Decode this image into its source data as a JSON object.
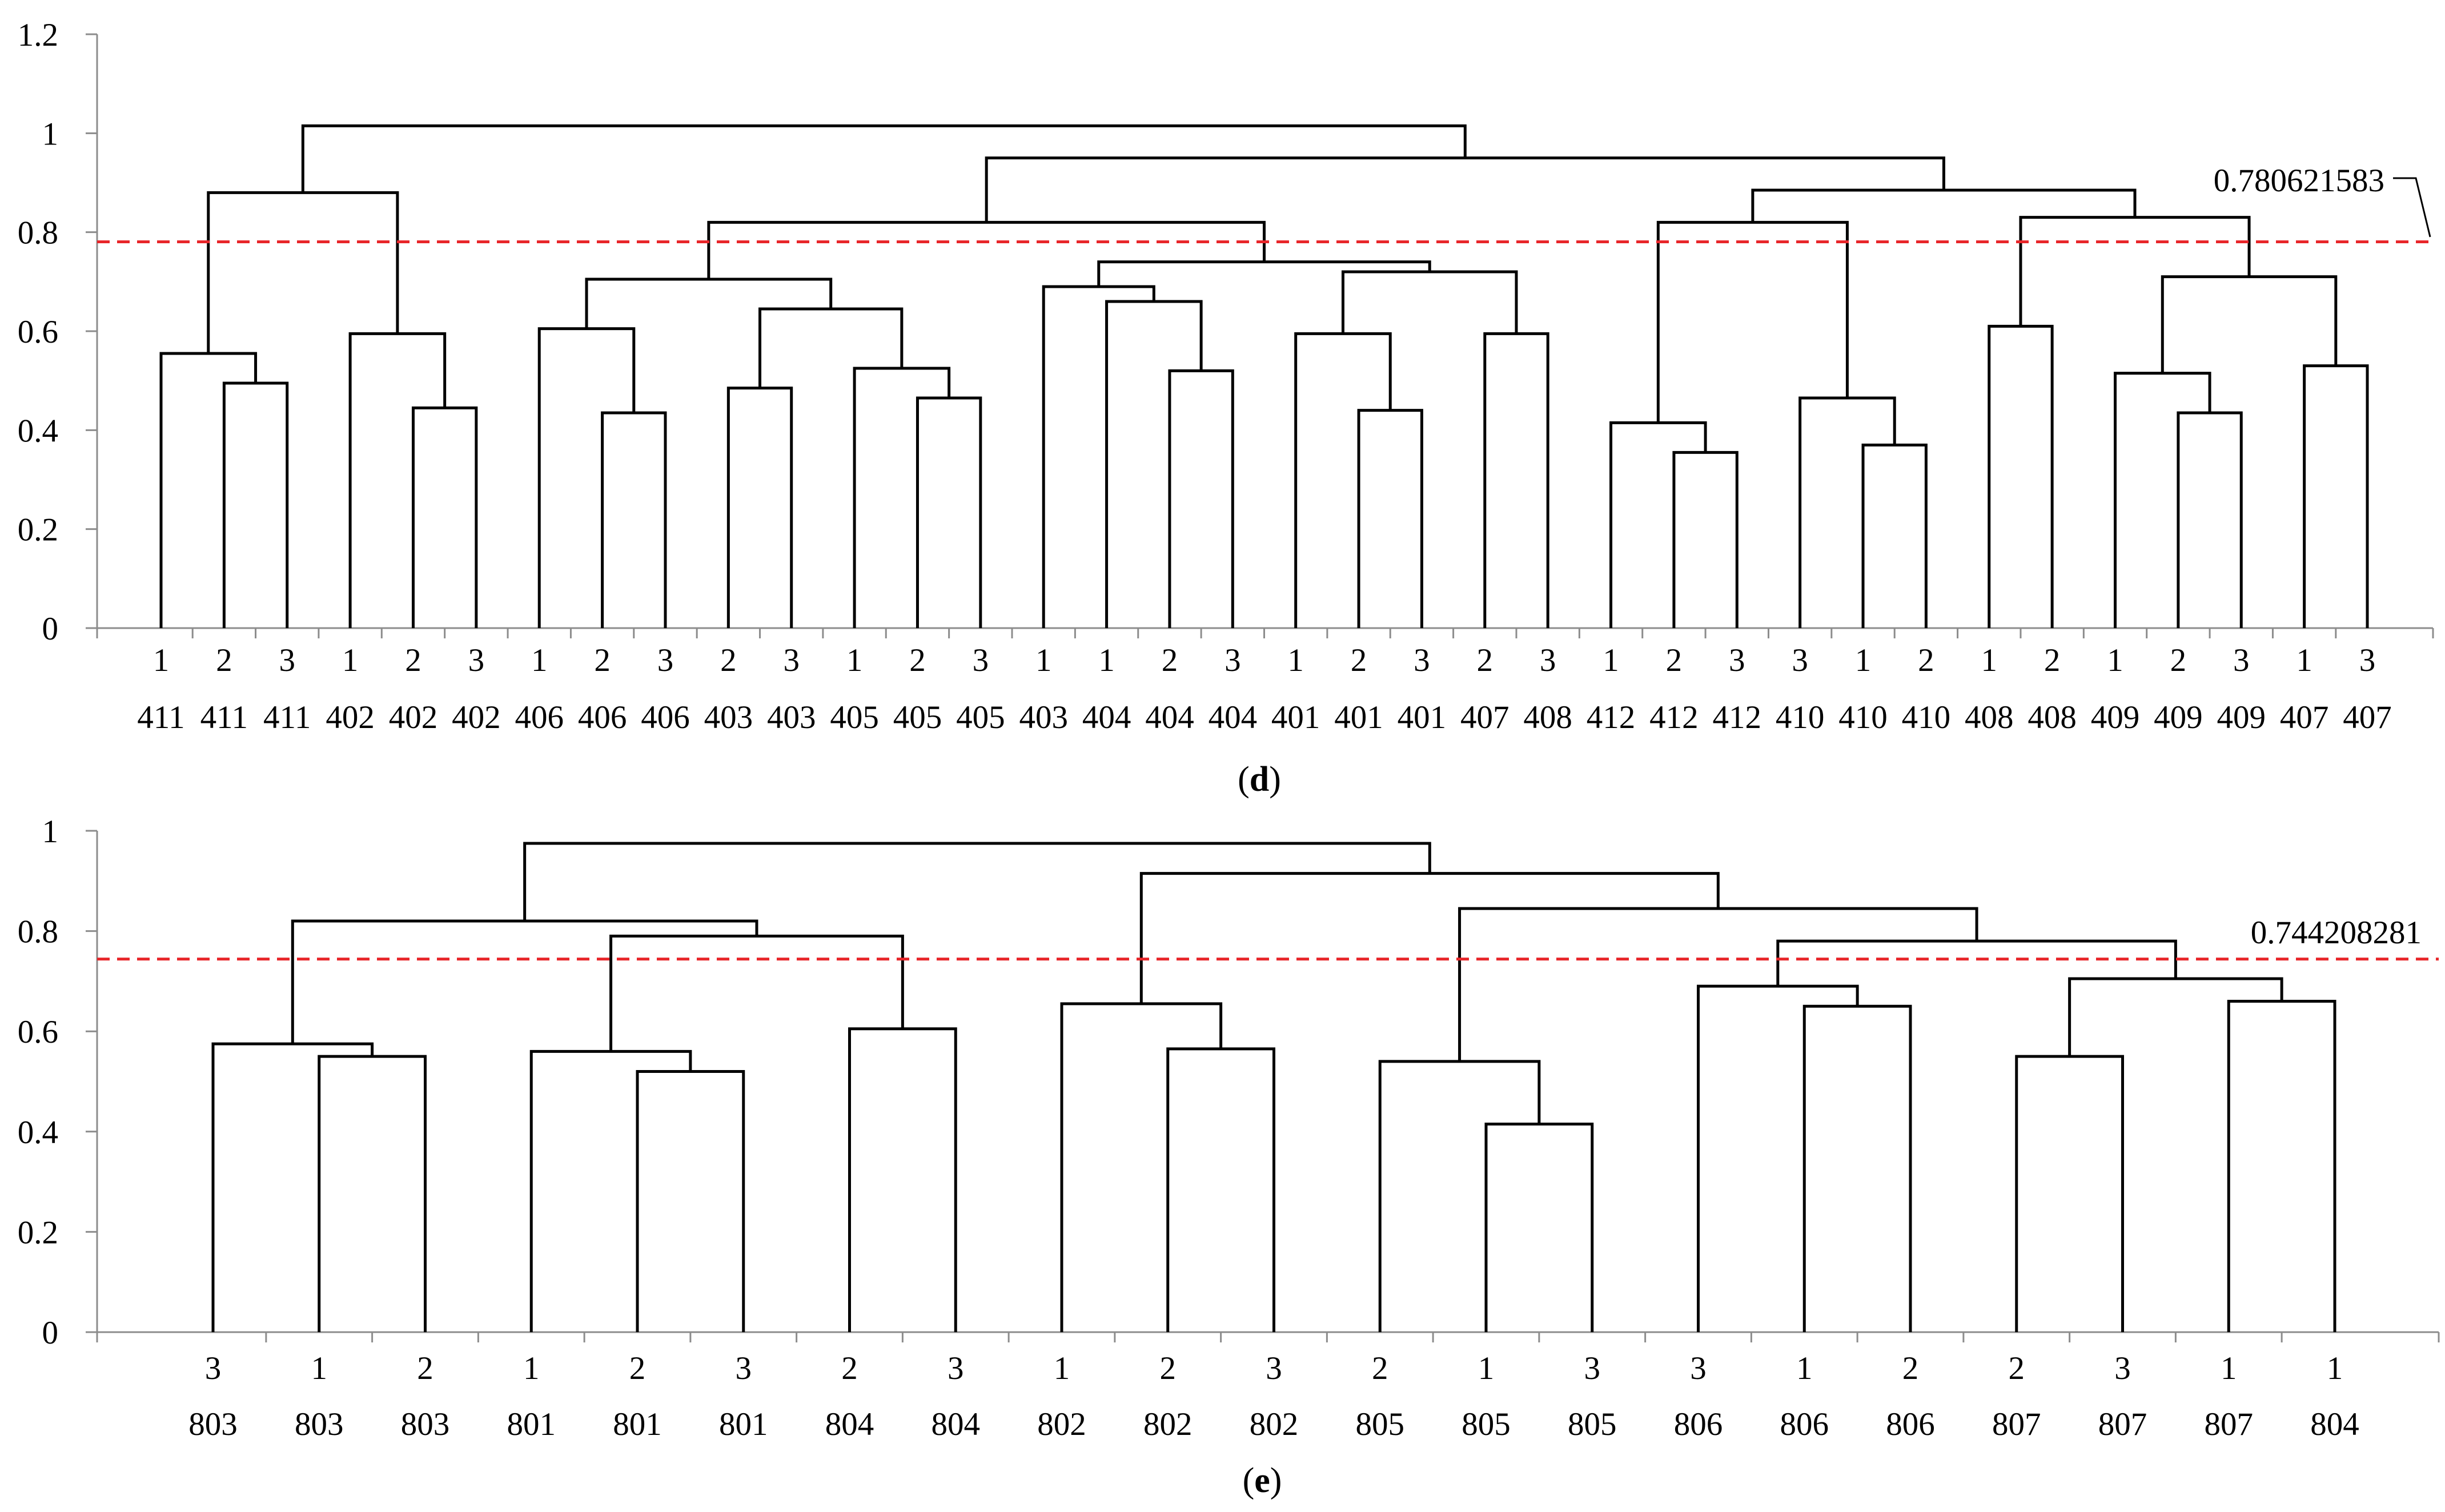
{
  "chart_data": [
    {
      "type": "dendrogram",
      "caption_letter": "d",
      "ylim": [
        0,
        1.2
      ],
      "yticks": [
        "0",
        "0.2",
        "0.4",
        "0.6",
        "0.8",
        "1",
        "1.2"
      ],
      "ytick_values": [
        0,
        0.2,
        0.4,
        0.6,
        0.8,
        1.0,
        1.2
      ],
      "threshold": 0.780621583,
      "threshold_label": "0.780621583",
      "leaves": [
        {
          "top": "1",
          "bottom": "411"
        },
        {
          "top": "2",
          "bottom": "411"
        },
        {
          "top": "3",
          "bottom": "411"
        },
        {
          "top": "1",
          "bottom": "402"
        },
        {
          "top": "2",
          "bottom": "402"
        },
        {
          "top": "3",
          "bottom": "402"
        },
        {
          "top": "1",
          "bottom": "406"
        },
        {
          "top": "2",
          "bottom": "406"
        },
        {
          "top": "3",
          "bottom": "406"
        },
        {
          "top": "2",
          "bottom": "403"
        },
        {
          "top": "3",
          "bottom": "403"
        },
        {
          "top": "1",
          "bottom": "405"
        },
        {
          "top": "2",
          "bottom": "405"
        },
        {
          "top": "3",
          "bottom": "405"
        },
        {
          "top": "1",
          "bottom": "403"
        },
        {
          "top": "1",
          "bottom": "404"
        },
        {
          "top": "2",
          "bottom": "404"
        },
        {
          "top": "3",
          "bottom": "404"
        },
        {
          "top": "1",
          "bottom": "401"
        },
        {
          "top": "2",
          "bottom": "401"
        },
        {
          "top": "3",
          "bottom": "401"
        },
        {
          "top": "2",
          "bottom": "407"
        },
        {
          "top": "3",
          "bottom": "408"
        },
        {
          "top": "1",
          "bottom": "412"
        },
        {
          "top": "2",
          "bottom": "412"
        },
        {
          "top": "3",
          "bottom": "412"
        },
        {
          "top": "3",
          "bottom": "410"
        },
        {
          "top": "1",
          "bottom": "410"
        },
        {
          "top": "2",
          "bottom": "410"
        },
        {
          "top": "1",
          "bottom": "408"
        },
        {
          "top": "2",
          "bottom": "408"
        },
        {
          "top": "1",
          "bottom": "409"
        },
        {
          "top": "2",
          "bottom": "409"
        },
        {
          "top": "3",
          "bottom": "409"
        },
        {
          "top": "1",
          "bottom": "407"
        },
        {
          "top": "3",
          "bottom": "407"
        }
      ],
      "merges": [
        {
          "a": 1,
          "b": 2,
          "h": 0.495
        },
        {
          "a": 0,
          "b": "m0",
          "h": 0.555
        },
        {
          "a": 4,
          "b": 5,
          "h": 0.445
        },
        {
          "a": 3,
          "b": "m2",
          "h": 0.595
        },
        {
          "a": "m1",
          "b": "m3",
          "h": 0.88
        },
        {
          "a": 7,
          "b": 8,
          "h": 0.435
        },
        {
          "a": 6,
          "b": "m5",
          "h": 0.605
        },
        {
          "a": 9,
          "b": 10,
          "h": 0.485
        },
        {
          "a": 12,
          "b": 13,
          "h": 0.465
        },
        {
          "a": 11,
          "b": "m8",
          "h": 0.525
        },
        {
          "a": "m7",
          "b": "m9",
          "h": 0.645
        },
        {
          "a": "m6",
          "b": "m10",
          "h": 0.705
        },
        {
          "a": 16,
          "b": 17,
          "h": 0.52
        },
        {
          "a": 15,
          "b": "m12",
          "h": 0.66
        },
        {
          "a": 14,
          "b": "m13",
          "h": 0.69
        },
        {
          "a": 19,
          "b": 20,
          "h": 0.44
        },
        {
          "a": 18,
          "b": "m15",
          "h": 0.595
        },
        {
          "a": 21,
          "b": 22,
          "h": 0.595
        },
        {
          "a": "m16",
          "b": "m17",
          "h": 0.72
        },
        {
          "a": "m14",
          "b": "m18",
          "h": 0.74
        },
        {
          "a": "m11",
          "b": "m19",
          "h": 0.82
        },
        {
          "a": 24,
          "b": 25,
          "h": 0.355
        },
        {
          "a": 23,
          "b": "m21",
          "h": 0.415
        },
        {
          "a": 27,
          "b": 28,
          "h": 0.37
        },
        {
          "a": 26,
          "b": "m23",
          "h": 0.465
        },
        {
          "a": "m22",
          "b": "m24",
          "h": 0.82
        },
        {
          "a": 29,
          "b": 30,
          "h": 0.61
        },
        {
          "a": 32,
          "b": 33,
          "h": 0.435
        },
        {
          "a": 31,
          "b": "m27",
          "h": 0.515
        },
        {
          "a": 34,
          "b": 35,
          "h": 0.53
        },
        {
          "a": "m28",
          "b": "m29",
          "h": 0.71
        },
        {
          "a": "m26",
          "b": "m30",
          "h": 0.83
        },
        {
          "a": "m25",
          "b": "m31",
          "h": 0.885
        },
        {
          "a": "m20",
          "b": "m32",
          "h": 0.95
        },
        {
          "a": "m4",
          "b": "m33",
          "h": 1.015
        }
      ]
    },
    {
      "type": "dendrogram",
      "caption_letter": "e",
      "ylim": [
        0,
        1
      ],
      "yticks": [
        "0",
        "0.2",
        "0.4",
        "0.6",
        "0.8",
        "1"
      ],
      "ytick_values": [
        0,
        0.2,
        0.4,
        0.6,
        0.8,
        1.0
      ],
      "threshold": 0.744208281,
      "threshold_label": "0.744208281",
      "leaves": [
        {
          "top": "3",
          "bottom": "803"
        },
        {
          "top": "1",
          "bottom": "803"
        },
        {
          "top": "2",
          "bottom": "803"
        },
        {
          "top": "1",
          "bottom": "801"
        },
        {
          "top": "2",
          "bottom": "801"
        },
        {
          "top": "3",
          "bottom": "801"
        },
        {
          "top": "2",
          "bottom": "804"
        },
        {
          "top": "3",
          "bottom": "804"
        },
        {
          "top": "1",
          "bottom": "802"
        },
        {
          "top": "2",
          "bottom": "802"
        },
        {
          "top": "3",
          "bottom": "802"
        },
        {
          "top": "2",
          "bottom": "805"
        },
        {
          "top": "1",
          "bottom": "805"
        },
        {
          "top": "3",
          "bottom": "805"
        },
        {
          "top": "3",
          "bottom": "806"
        },
        {
          "top": "1",
          "bottom": "806"
        },
        {
          "top": "2",
          "bottom": "806"
        },
        {
          "top": "2",
          "bottom": "807"
        },
        {
          "top": "3",
          "bottom": "807"
        },
        {
          "top": "1",
          "bottom": "807"
        },
        {
          "top": "1",
          "bottom": "804"
        }
      ],
      "merges": [
        {
          "a": 1,
          "b": 2,
          "h": 0.55
        },
        {
          "a": 0,
          "b": "m0",
          "h": 0.575
        },
        {
          "a": 4,
          "b": 5,
          "h": 0.52
        },
        {
          "a": 3,
          "b": "m2",
          "h": 0.56
        },
        {
          "a": 6,
          "b": 7,
          "h": 0.605
        },
        {
          "a": "m3",
          "b": "m4",
          "h": 0.79
        },
        {
          "a": "m1",
          "b": "m5",
          "h": 0.82
        },
        {
          "a": 9,
          "b": 10,
          "h": 0.565
        },
        {
          "a": 8,
          "b": "m7",
          "h": 0.655
        },
        {
          "a": 12,
          "b": 13,
          "h": 0.415
        },
        {
          "a": 11,
          "b": "m9",
          "h": 0.54
        },
        {
          "a": 15,
          "b": 16,
          "h": 0.65
        },
        {
          "a": 14,
          "b": "m11",
          "h": 0.69
        },
        {
          "a": 17,
          "b": 18,
          "h": 0.55
        },
        {
          "a": 19,
          "b": 20,
          "h": 0.66
        },
        {
          "a": "m13",
          "b": "m14",
          "h": 0.705
        },
        {
          "a": "m12",
          "b": "m15",
          "h": 0.78
        },
        {
          "a": "m10",
          "b": "m16",
          "h": 0.845
        },
        {
          "a": "m8",
          "b": "m17",
          "h": 0.915
        },
        {
          "a": "m6",
          "b": "m18",
          "h": 0.975
        }
      ]
    }
  ]
}
